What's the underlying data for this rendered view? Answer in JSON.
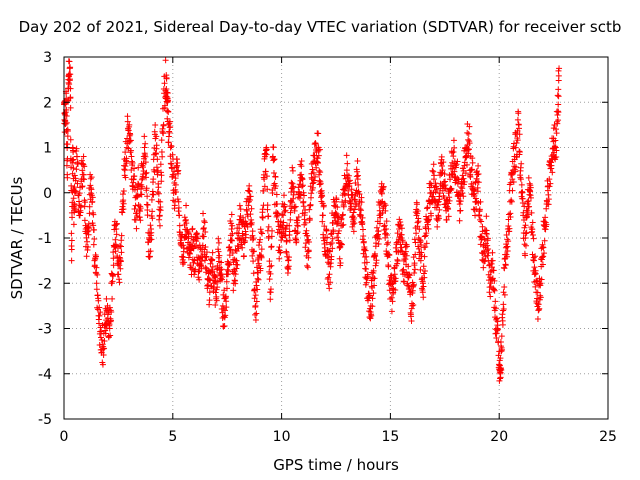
{
  "chart_data": {
    "type": "scatter",
    "title": "Day 202 of 2021, Sidereal Day-to-day VTEC variation (SDTVAR) for receiver sctb",
    "xlabel": "GPS time / hours",
    "ylabel": "SDTVAR / TECUs",
    "xlim": [
      0,
      25
    ],
    "ylim": [
      -5,
      3
    ],
    "xticks": [
      "0",
      "5",
      "10",
      "15",
      "20",
      "25"
    ],
    "xtick_values": [
      0,
      5,
      10,
      15,
      20,
      25
    ],
    "yticks": [
      "3",
      "2",
      "1",
      "0",
      "-1",
      "-2",
      "-3",
      "-4",
      "-5"
    ],
    "ytick_values": [
      3,
      2,
      1,
      0,
      -1,
      -2,
      -3,
      -4,
      -5
    ],
    "grid": true,
    "marker": "+",
    "series": [
      {
        "name": "SDTVAR",
        "color": "#ff0000",
        "points": [
          [
            0.0,
            2.0
          ],
          [
            0.05,
            1.6
          ],
          [
            0.1,
            2.2
          ],
          [
            0.15,
            0.4
          ],
          [
            0.2,
            2.5
          ],
          [
            0.25,
            2.9
          ],
          [
            0.3,
            2.3
          ],
          [
            0.35,
            -1.5
          ],
          [
            0.4,
            1.0
          ],
          [
            0.45,
            -0.3
          ],
          [
            0.5,
            0.0
          ],
          [
            0.6,
            0.8
          ],
          [
            0.7,
            -0.5
          ],
          [
            0.8,
            0.3
          ],
          [
            0.9,
            0.8
          ],
          [
            1.0,
            -0.8
          ],
          [
            1.1,
            -1.2
          ],
          [
            1.2,
            0.4
          ],
          [
            1.3,
            -0.2
          ],
          [
            1.4,
            -1.5
          ],
          [
            1.5,
            -2.0
          ],
          [
            1.6,
            -2.8
          ],
          [
            1.7,
            -3.2
          ],
          [
            1.8,
            -3.4
          ],
          [
            1.9,
            -2.9
          ],
          [
            2.0,
            -2.5
          ],
          [
            2.1,
            -3.0
          ],
          [
            2.2,
            -2.0
          ],
          [
            2.3,
            -1.2
          ],
          [
            2.4,
            -0.8
          ],
          [
            2.5,
            -1.8
          ],
          [
            2.6,
            -1.5
          ],
          [
            2.7,
            -0.2
          ],
          [
            2.8,
            0.5
          ],
          [
            2.9,
            1.2
          ],
          [
            3.0,
            1.5
          ],
          [
            3.1,
            0.8
          ],
          [
            3.2,
            0.3
          ],
          [
            3.3,
            -0.6
          ],
          [
            3.4,
            0.2
          ],
          [
            3.5,
            -0.3
          ],
          [
            3.6,
            0.6
          ],
          [
            3.7,
            1.0
          ],
          [
            3.8,
            0.1
          ],
          [
            3.9,
            -1.3
          ],
          [
            4.0,
            -0.8
          ],
          [
            4.1,
            0.3
          ],
          [
            4.2,
            1.2
          ],
          [
            4.3,
            0.4
          ],
          [
            4.4,
            -0.5
          ],
          [
            4.5,
            0.9
          ],
          [
            4.6,
            2.2
          ],
          [
            4.7,
            2.6
          ],
          [
            4.75,
            2.0
          ],
          [
            4.8,
            1.5
          ],
          [
            4.9,
            1.0
          ],
          [
            5.0,
            0.4
          ],
          [
            5.1,
            -0.2
          ],
          [
            5.2,
            0.6
          ],
          [
            5.3,
            -0.5
          ],
          [
            5.4,
            -1.0
          ],
          [
            5.5,
            -1.3
          ],
          [
            5.6,
            -0.6
          ],
          [
            5.7,
            -1.1
          ],
          [
            5.8,
            -1.6
          ],
          [
            5.9,
            -1.2
          ],
          [
            6.0,
            -1.5
          ],
          [
            6.1,
            -1.0
          ],
          [
            6.2,
            -1.6
          ],
          [
            6.3,
            -1.4
          ],
          [
            6.4,
            -0.8
          ],
          [
            6.5,
            -1.2
          ],
          [
            6.6,
            -1.9
          ],
          [
            6.7,
            -2.2
          ],
          [
            6.8,
            -1.5
          ],
          [
            6.9,
            -2.0
          ],
          [
            7.0,
            -2.3
          ],
          [
            7.1,
            -1.3
          ],
          [
            7.2,
            -1.8
          ],
          [
            7.3,
            -2.5
          ],
          [
            7.4,
            -2.6
          ],
          [
            7.5,
            -1.8
          ],
          [
            7.6,
            -1.2
          ],
          [
            7.7,
            -0.8
          ],
          [
            7.8,
            -2.0
          ],
          [
            7.9,
            -1.5
          ],
          [
            8.0,
            -1.0
          ],
          [
            8.1,
            -0.6
          ],
          [
            8.2,
            -0.9
          ],
          [
            8.3,
            -1.1
          ],
          [
            8.4,
            -0.4
          ],
          [
            8.5,
            -0.2
          ],
          [
            8.6,
            -0.6
          ],
          [
            8.7,
            -1.3
          ],
          [
            8.8,
            -2.5
          ],
          [
            8.9,
            -1.9
          ],
          [
            9.0,
            -1.4
          ],
          [
            9.1,
            -0.9
          ],
          [
            9.2,
            0.3
          ],
          [
            9.3,
            1.0
          ],
          [
            9.4,
            -1.0
          ],
          [
            9.5,
            -2.2
          ],
          [
            9.6,
            0.8
          ],
          [
            9.7,
            0.1
          ],
          [
            9.8,
            -0.5
          ],
          [
            9.9,
            -1.2
          ],
          [
            10.0,
            -0.9
          ],
          [
            10.1,
            -0.3
          ],
          [
            10.2,
            -0.8
          ],
          [
            10.3,
            -1.5
          ],
          [
            10.4,
            -0.6
          ],
          [
            10.5,
            0.2
          ],
          [
            10.6,
            -0.4
          ],
          [
            10.7,
            -0.9
          ],
          [
            10.8,
            0.0
          ],
          [
            10.9,
            0.4
          ],
          [
            11.0,
            -0.2
          ],
          [
            11.1,
            -0.9
          ],
          [
            11.2,
            -1.3
          ],
          [
            11.3,
            -0.6
          ],
          [
            11.4,
            0.3
          ],
          [
            11.5,
            0.7
          ],
          [
            11.6,
            0.9
          ],
          [
            11.7,
            1.0
          ],
          [
            11.8,
            0.2
          ],
          [
            11.9,
            -0.5
          ],
          [
            12.0,
            -1.0
          ],
          [
            12.1,
            -1.4
          ],
          [
            12.2,
            -1.8
          ],
          [
            12.3,
            -0.9
          ],
          [
            12.4,
            -0.5
          ],
          [
            12.5,
            -0.2
          ],
          [
            12.6,
            -0.9
          ],
          [
            12.7,
            -1.2
          ],
          [
            12.8,
            -0.5
          ],
          [
            12.9,
            0.1
          ],
          [
            13.0,
            0.5
          ],
          [
            13.1,
            0.2
          ],
          [
            13.2,
            -0.3
          ],
          [
            13.3,
            -0.6
          ],
          [
            13.4,
            0.0
          ],
          [
            13.5,
            0.3
          ],
          [
            13.6,
            -0.2
          ],
          [
            13.7,
            -0.7
          ],
          [
            13.8,
            -1.2
          ],
          [
            13.9,
            -1.9
          ],
          [
            14.0,
            -2.3
          ],
          [
            14.1,
            -2.5
          ],
          [
            14.2,
            -1.9
          ],
          [
            14.3,
            -1.4
          ],
          [
            14.4,
            -1.0
          ],
          [
            14.5,
            -0.5
          ],
          [
            14.6,
            0.2
          ],
          [
            14.7,
            -0.3
          ],
          [
            14.8,
            -0.8
          ],
          [
            14.9,
            -1.6
          ],
          [
            15.0,
            -2.0
          ],
          [
            15.1,
            -2.4
          ],
          [
            15.2,
            -1.8
          ],
          [
            15.3,
            -1.3
          ],
          [
            15.4,
            -0.8
          ],
          [
            15.5,
            -1.0
          ],
          [
            15.6,
            -1.7
          ],
          [
            15.7,
            -1.2
          ],
          [
            15.8,
            -1.8
          ],
          [
            15.9,
            -2.2
          ],
          [
            16.0,
            -2.5
          ],
          [
            16.1,
            -1.6
          ],
          [
            16.2,
            -0.5
          ],
          [
            16.3,
            -1.0
          ],
          [
            16.4,
            -1.5
          ],
          [
            16.5,
            -2.0
          ],
          [
            16.6,
            -1.2
          ],
          [
            16.7,
            -0.6
          ],
          [
            16.8,
            -0.2
          ],
          [
            16.9,
            0.0
          ],
          [
            17.0,
            0.3
          ],
          [
            17.1,
            -0.2
          ],
          [
            17.2,
            -0.5
          ],
          [
            17.3,
            0.2
          ],
          [
            17.4,
            0.5
          ],
          [
            17.5,
            0.1
          ],
          [
            17.6,
            -0.3
          ],
          [
            17.7,
            -0.1
          ],
          [
            17.8,
            0.4
          ],
          [
            17.9,
            0.9
          ],
          [
            18.0,
            0.6
          ],
          [
            18.1,
            0.2
          ],
          [
            18.2,
            -0.4
          ],
          [
            18.3,
            0.1
          ],
          [
            18.4,
            0.6
          ],
          [
            18.5,
            1.0
          ],
          [
            18.6,
            1.3
          ],
          [
            18.7,
            0.5
          ],
          [
            18.8,
            0.2
          ],
          [
            18.9,
            -0.2
          ],
          [
            19.0,
            0.4
          ],
          [
            19.1,
            -0.4
          ],
          [
            19.2,
            -1.0
          ],
          [
            19.3,
            -1.3
          ],
          [
            19.4,
            -0.9
          ],
          [
            19.5,
            -1.5
          ],
          [
            19.6,
            -2.0
          ],
          [
            19.7,
            -1.5
          ],
          [
            19.8,
            -2.6
          ],
          [
            19.9,
            -3.0
          ],
          [
            20.0,
            -3.9
          ],
          [
            20.05,
            -4.0
          ],
          [
            20.1,
            -3.5
          ],
          [
            20.2,
            -2.2
          ],
          [
            20.3,
            -1.6
          ],
          [
            20.4,
            -0.8
          ],
          [
            20.5,
            -0.2
          ],
          [
            20.6,
            0.3
          ],
          [
            20.7,
            0.8
          ],
          [
            20.8,
            1.1
          ],
          [
            20.9,
            1.5
          ],
          [
            21.0,
            0.3
          ],
          [
            21.1,
            -0.5
          ],
          [
            21.2,
            -1.0
          ],
          [
            21.3,
            -0.4
          ],
          [
            21.4,
            0.2
          ],
          [
            21.5,
            -0.8
          ],
          [
            21.6,
            -1.5
          ],
          [
            21.7,
            -2.2
          ],
          [
            21.8,
            -2.6
          ],
          [
            21.9,
            -2.0
          ],
          [
            22.0,
            -1.2
          ],
          [
            22.1,
            -0.8
          ],
          [
            22.2,
            -0.2
          ],
          [
            22.3,
            0.3
          ],
          [
            22.4,
            0.6
          ],
          [
            22.5,
            1.2
          ],
          [
            22.6,
            1.0
          ],
          [
            22.7,
            1.8
          ],
          [
            22.75,
            2.75
          ]
        ]
      }
    ]
  }
}
